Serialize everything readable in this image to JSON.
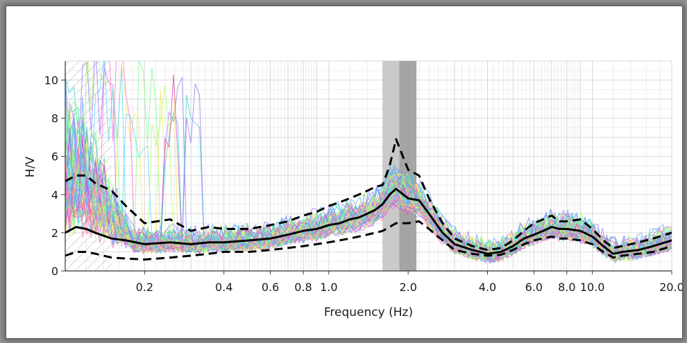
{
  "chart_data": {
    "type": "line",
    "title": "",
    "xlabel": "Frequency (Hz)",
    "ylabel": "H/V",
    "x_scale": "log",
    "xlim": [
      0.1,
      20.0
    ],
    "ylim": [
      0,
      11
    ],
    "grid": true,
    "x_ticks": [
      "0.2",
      "0.4",
      "0.6",
      "0.8",
      "1.0",
      "2.0",
      "4.0",
      "6.0",
      "8.0",
      "10.0",
      "20.0"
    ],
    "y_ticks": [
      "0",
      "2",
      "4",
      "6",
      "8",
      "10"
    ],
    "peak_band": {
      "f0": 1.85,
      "low": 1.6,
      "high": 2.15,
      "colors": [
        "#c4c4c4",
        "#9b9b9b"
      ]
    },
    "hatched_region": {
      "from": 0.1,
      "to": 0.15
    },
    "x": [
      0.1,
      0.11,
      0.12,
      0.13,
      0.15,
      0.17,
      0.2,
      0.25,
      0.3,
      0.35,
      0.4,
      0.5,
      0.6,
      0.7,
      0.8,
      0.9,
      1.0,
      1.1,
      1.2,
      1.3,
      1.4,
      1.5,
      1.6,
      1.7,
      1.8,
      2.0,
      2.2,
      2.4,
      2.7,
      3.0,
      3.5,
      4.0,
      4.5,
      5.0,
      5.5,
      6.0,
      6.5,
      7.0,
      7.5,
      8.0,
      9.0,
      10.0,
      11.0,
      12.0,
      13.0,
      15.0,
      17.0,
      20.0
    ],
    "series": [
      {
        "role": "mean",
        "color": "#000000",
        "style": "solid",
        "values": [
          2.0,
          2.3,
          2.2,
          2.0,
          1.7,
          1.6,
          1.4,
          1.5,
          1.4,
          1.5,
          1.5,
          1.6,
          1.7,
          1.9,
          2.1,
          2.2,
          2.4,
          2.5,
          2.7,
          2.8,
          3.0,
          3.2,
          3.5,
          4.0,
          4.3,
          3.8,
          3.7,
          3.0,
          2.0,
          1.4,
          1.1,
          0.9,
          1.0,
          1.3,
          1.7,
          1.9,
          2.1,
          2.3,
          2.2,
          2.2,
          2.1,
          1.8,
          1.3,
          0.9,
          1.0,
          1.1,
          1.3,
          1.6
        ]
      },
      {
        "role": "mean-plus-std",
        "color": "#000000",
        "style": "dashed",
        "values": [
          4.7,
          5.0,
          5.0,
          4.6,
          4.2,
          3.4,
          2.5,
          2.7,
          2.1,
          2.3,
          2.2,
          2.2,
          2.4,
          2.6,
          2.9,
          3.1,
          3.4,
          3.6,
          3.8,
          4.0,
          4.2,
          4.4,
          4.5,
          5.5,
          6.9,
          5.3,
          5.0,
          3.8,
          2.5,
          1.7,
          1.3,
          1.1,
          1.2,
          1.6,
          2.1,
          2.5,
          2.7,
          2.9,
          2.6,
          2.6,
          2.7,
          2.2,
          1.6,
          1.2,
          1.3,
          1.5,
          1.7,
          2.0
        ]
      },
      {
        "role": "mean-minus-std",
        "color": "#000000",
        "style": "dashed",
        "values": [
          0.8,
          1.0,
          1.0,
          0.9,
          0.7,
          0.65,
          0.6,
          0.7,
          0.8,
          0.9,
          1.0,
          1.0,
          1.1,
          1.2,
          1.3,
          1.4,
          1.5,
          1.6,
          1.7,
          1.8,
          1.9,
          2.0,
          2.1,
          2.3,
          2.5,
          2.5,
          2.6,
          2.2,
          1.6,
          1.1,
          0.9,
          0.8,
          0.85,
          1.1,
          1.4,
          1.6,
          1.7,
          1.8,
          1.7,
          1.7,
          1.6,
          1.4,
          1.0,
          0.7,
          0.8,
          0.9,
          1.0,
          1.3
        ]
      }
    ],
    "window_curves": {
      "count": 60,
      "colors": [
        "#ff6ec7",
        "#5ad8ff",
        "#9a7bff",
        "#7dff8a",
        "#ffe35c",
        "#3fd6c6",
        "#d94fd0",
        "#6fa8ff",
        "#b3ff6b",
        "#ff8ea8"
      ]
    }
  }
}
